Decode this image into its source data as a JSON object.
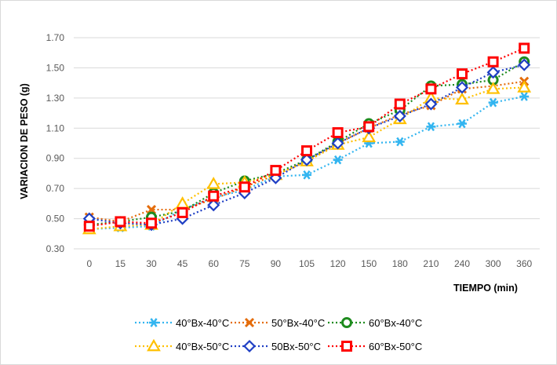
{
  "chart_data": {
    "type": "line",
    "title": "",
    "xlabel": "TIEMPO (min)",
    "ylabel": "VARIACION DE PESO (g)",
    "categories": [
      "0",
      "15",
      "30",
      "45",
      "60",
      "75",
      "90",
      "105",
      "120",
      "150",
      "180",
      "210",
      "240",
      "300",
      "360"
    ],
    "ylim": [
      0.3,
      1.7
    ],
    "yticks": [
      "0.30",
      "0.50",
      "0.70",
      "0.90",
      "1.10",
      "1.30",
      "1.50",
      "1.70"
    ],
    "grid": true,
    "legend": "bottom",
    "series": [
      {
        "name": "40°Bx-40°C",
        "color": "#33b5f0",
        "marker": "asterisk",
        "values": [
          0.43,
          0.44,
          0.45,
          0.56,
          0.64,
          0.69,
          0.78,
          0.79,
          0.89,
          1.0,
          1.01,
          1.11,
          1.13,
          1.27,
          1.31
        ]
      },
      {
        "name": "50°Bx-40°C",
        "color": "#e46c0a",
        "marker": "x",
        "values": [
          0.51,
          0.48,
          0.56,
          0.56,
          0.63,
          0.71,
          0.79,
          0.88,
          1.0,
          1.1,
          1.19,
          1.25,
          1.36,
          1.38,
          1.41
        ]
      },
      {
        "name": "60°Bx-40°C",
        "color": "#1e8b1e",
        "marker": "circle",
        "values": [
          0.46,
          0.48,
          0.51,
          0.55,
          0.67,
          0.75,
          0.8,
          0.89,
          1.01,
          1.13,
          1.22,
          1.38,
          1.39,
          1.42,
          1.54
        ]
      },
      {
        "name": "40°Bx-50°C",
        "color": "#ffc000",
        "marker": "triangle",
        "values": [
          0.43,
          0.45,
          0.46,
          0.6,
          0.73,
          0.74,
          0.79,
          0.88,
          0.99,
          1.04,
          1.16,
          1.3,
          1.29,
          1.36,
          1.37
        ]
      },
      {
        "name": "50Bx-50°C",
        "color": "#1f3fc4",
        "marker": "diamond",
        "values": [
          0.5,
          0.47,
          0.46,
          0.5,
          0.59,
          0.67,
          0.77,
          0.89,
          1.0,
          1.1,
          1.18,
          1.26,
          1.37,
          1.47,
          1.52
        ]
      },
      {
        "name": "60°Bx-50°C",
        "color": "#ff0000",
        "marker": "square",
        "values": [
          0.45,
          0.48,
          0.47,
          0.54,
          0.65,
          0.71,
          0.82,
          0.95,
          1.07,
          1.11,
          1.26,
          1.36,
          1.46,
          1.54,
          1.63
        ]
      }
    ]
  }
}
